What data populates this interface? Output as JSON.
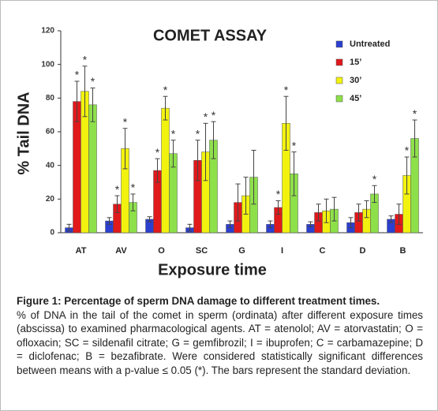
{
  "chart_data": {
    "type": "bar",
    "title": "COMET ASSAY",
    "x_label": "Exposure time",
    "y_label": "% Tail DNA",
    "categories": [
      "AT",
      "AV",
      "O",
      "SC",
      "G",
      "I",
      "C",
      "D",
      "B"
    ],
    "ylim": [
      0,
      120
    ],
    "yticks": [
      0,
      20,
      40,
      60,
      80,
      100,
      120
    ],
    "legend": "upper right",
    "series": [
      {
        "name": "Untreated",
        "color": "#2b3fd0",
        "values": [
          3,
          7,
          8,
          3,
          5,
          5,
          5,
          6,
          8
        ],
        "errors": [
          2,
          2,
          1.5,
          2,
          2,
          2,
          1.5,
          3,
          2
        ],
        "significance": [
          null,
          null,
          null,
          null,
          null,
          null,
          null,
          null,
          null
        ]
      },
      {
        "name": "15’",
        "color": "#e0191b",
        "values": [
          78,
          17,
          37,
          43,
          18,
          15,
          12,
          12,
          11
        ],
        "errors": [
          12,
          5,
          7,
          12,
          11,
          4,
          5,
          5,
          6
        ],
        "significance": [
          "*",
          "*",
          "*",
          "*",
          null,
          "*",
          null,
          null,
          null
        ]
      },
      {
        "name": "30’",
        "color": "#f2f20f",
        "values": [
          84,
          50,
          74,
          48,
          22,
          65,
          13,
          14,
          34
        ],
        "errors": [
          15,
          12,
          7,
          17,
          11,
          16,
          7,
          5,
          11
        ],
        "significance": [
          "*",
          "*",
          "*",
          "*",
          null,
          "*",
          null,
          null,
          "*"
        ]
      },
      {
        "name": "45’",
        "color": "#8ee04a",
        "values": [
          76,
          18,
          47,
          55,
          33,
          35,
          14,
          23,
          56
        ],
        "errors": [
          10,
          5,
          8,
          11,
          16,
          13,
          7,
          5,
          11
        ],
        "significance": [
          "*",
          "*",
          "*",
          "*",
          null,
          "*",
          null,
          "*",
          "*"
        ]
      }
    ]
  },
  "caption": {
    "label": "Figure 1: Percentage of sperm DNA damage to different treatment times.",
    "text": "% of DNA in the tail of the comet in sperm (ordinata) after different exposure times (abscissa) to examined pharmacological agents. AT = atenolol; AV = atorvastatin; O = ofloxacin; SC = sildenafil citrate; G = gemfibrozil; I = ibuprofen; C = carbamazepine; D = diclofenac; B = bezafibrate. Were considered statistically significant differences between means with a p-value ≤ 0.05 (*). The bars represent the standard deviation."
  }
}
